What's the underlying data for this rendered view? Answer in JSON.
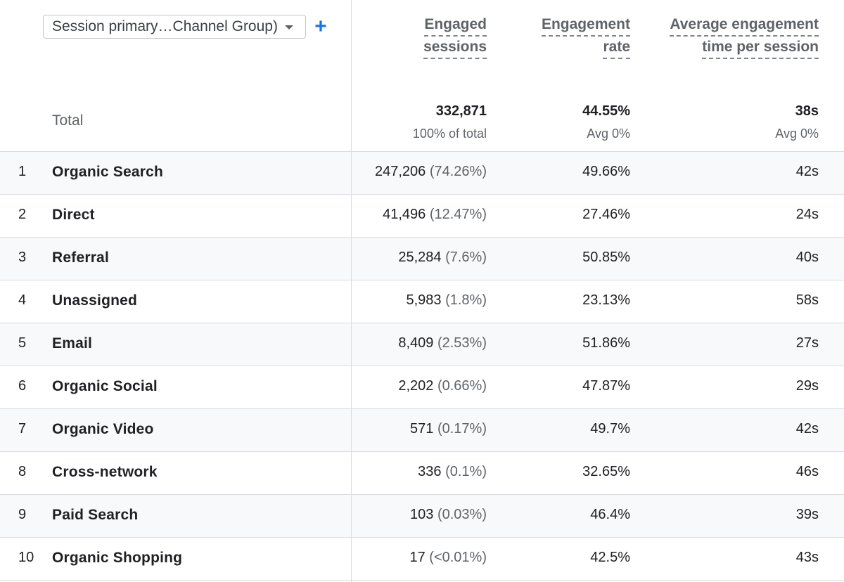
{
  "dimension_selector": {
    "label": "Session primary…Channel Group)",
    "caret_icon": "caret-down-icon",
    "add_icon": "plus-icon",
    "add_symbol": "+",
    "accent_color": "#1a73e8"
  },
  "columns": [
    {
      "line1": "Engaged",
      "line2": "sessions"
    },
    {
      "line1": "Engagement",
      "line2": "rate"
    },
    {
      "line1": "Average engagement",
      "line2": "time per session"
    }
  ],
  "totals": {
    "label": "Total",
    "engaged_sessions": "332,871",
    "engaged_sessions_sub": "100% of total",
    "engagement_rate": "44.55%",
    "engagement_rate_sub": "Avg 0%",
    "avg_time": "38s",
    "avg_time_sub": "Avg 0%"
  },
  "rows": [
    {
      "index": "1",
      "channel": "Organic Search",
      "sessions": "247,206",
      "share": "(74.26%)",
      "rate": "49.66%",
      "time": "42s"
    },
    {
      "index": "2",
      "channel": "Direct",
      "sessions": "41,496",
      "share": "(12.47%)",
      "rate": "27.46%",
      "time": "24s"
    },
    {
      "index": "3",
      "channel": "Referral",
      "sessions": "25,284",
      "share": "(7.6%)",
      "rate": "50.85%",
      "time": "40s"
    },
    {
      "index": "4",
      "channel": "Unassigned",
      "sessions": "5,983",
      "share": "(1.8%)",
      "rate": "23.13%",
      "time": "58s"
    },
    {
      "index": "5",
      "channel": "Email",
      "sessions": "8,409",
      "share": "(2.53%)",
      "rate": "51.86%",
      "time": "27s"
    },
    {
      "index": "6",
      "channel": "Organic Social",
      "sessions": "2,202",
      "share": "(0.66%)",
      "rate": "47.87%",
      "time": "29s"
    },
    {
      "index": "7",
      "channel": "Organic Video",
      "sessions": "571",
      "share": "(0.17%)",
      "rate": "49.7%",
      "time": "42s"
    },
    {
      "index": "8",
      "channel": "Cross-network",
      "sessions": "336",
      "share": "(0.1%)",
      "rate": "32.65%",
      "time": "46s"
    },
    {
      "index": "9",
      "channel": "Paid Search",
      "sessions": "103",
      "share": "(0.03%)",
      "rate": "46.4%",
      "time": "39s"
    },
    {
      "index": "10",
      "channel": "Organic Shopping",
      "sessions": "17",
      "share": "(<0.01%)",
      "rate": "42.5%",
      "time": "43s"
    }
  ]
}
